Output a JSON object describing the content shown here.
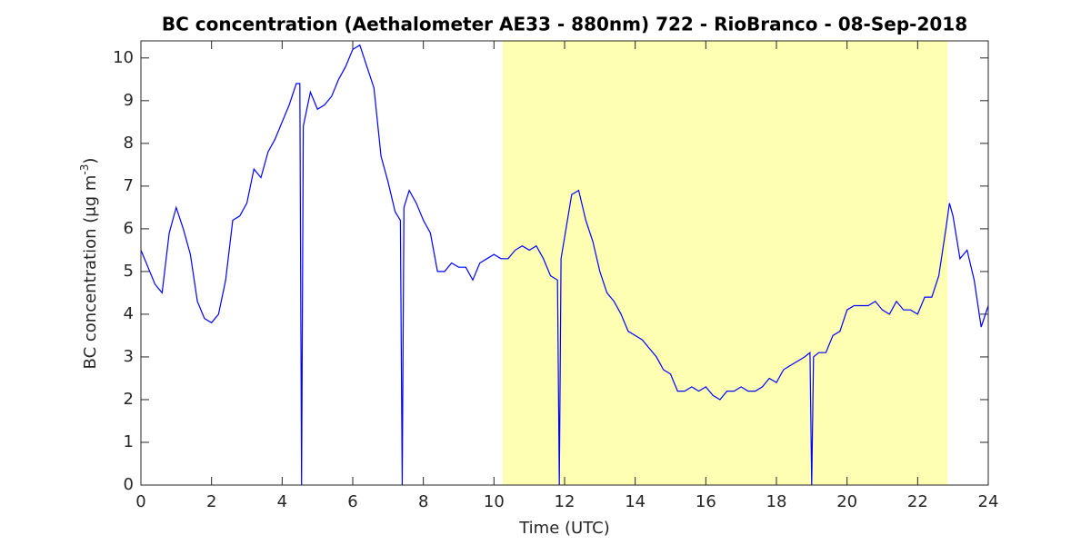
{
  "chart_data": {
    "type": "line",
    "title": "BC concentration (Aethalometer AE33 - 880nm) 722 - RioBranco - 08-Sep-2018",
    "xlabel": "Time (UTC)",
    "ylabel": {
      "text": "BC concentration (μg m",
      "superscript": "-3",
      "suffix": ")"
    },
    "xlim": [
      0,
      24
    ],
    "xticks": [
      0,
      2,
      4,
      6,
      8,
      10,
      12,
      14,
      16,
      18,
      20,
      22,
      24
    ],
    "ylim": [
      0,
      10.4
    ],
    "yticks": [
      0,
      1,
      2,
      3,
      4,
      5,
      6,
      7,
      8,
      9,
      10
    ],
    "shaded_region": {
      "x": [
        10.25,
        22.85
      ],
      "color": "#ffffb3"
    },
    "x": [
      0.0,
      0.2,
      0.4,
      0.6,
      0.8,
      1.0,
      1.2,
      1.4,
      1.6,
      1.8,
      2.0,
      2.2,
      2.4,
      2.6,
      2.8,
      3.0,
      3.2,
      3.4,
      3.6,
      3.8,
      4.0,
      4.2,
      4.4,
      4.5,
      4.55,
      4.6,
      4.8,
      5.0,
      5.2,
      5.4,
      5.6,
      5.8,
      6.0,
      6.2,
      6.4,
      6.6,
      6.8,
      7.0,
      7.2,
      7.35,
      7.4,
      7.45,
      7.6,
      7.8,
      8.0,
      8.2,
      8.4,
      8.6,
      8.8,
      9.0,
      9.2,
      9.4,
      9.6,
      9.8,
      10.0,
      10.2,
      10.4,
      10.6,
      10.8,
      11.0,
      11.2,
      11.4,
      11.6,
      11.8,
      11.85,
      11.9,
      12.0,
      12.2,
      12.4,
      12.6,
      12.8,
      13.0,
      13.2,
      13.4,
      13.6,
      13.8,
      14.0,
      14.2,
      14.4,
      14.6,
      14.8,
      15.0,
      15.2,
      15.4,
      15.6,
      15.8,
      16.0,
      16.2,
      16.4,
      16.6,
      16.8,
      17.0,
      17.2,
      17.4,
      17.6,
      17.8,
      18.0,
      18.2,
      18.4,
      18.6,
      18.8,
      18.95,
      19.0,
      19.05,
      19.2,
      19.4,
      19.6,
      19.8,
      20.0,
      20.2,
      20.4,
      20.6,
      20.8,
      21.0,
      21.2,
      21.4,
      21.6,
      21.8,
      22.0,
      22.2,
      22.4,
      22.6,
      22.8,
      22.9,
      23.0,
      23.2,
      23.4,
      23.6,
      23.8,
      24.0
    ],
    "series": [
      {
        "color": "#0000ff",
        "values": [
          5.5,
          5.1,
          4.7,
          4.5,
          5.9,
          6.5,
          6.0,
          5.4,
          4.3,
          3.9,
          3.8,
          4.0,
          4.8,
          6.2,
          6.3,
          6.6,
          7.4,
          7.2,
          7.8,
          8.1,
          8.5,
          8.9,
          9.4,
          9.4,
          0,
          8.4,
          9.2,
          8.8,
          8.9,
          9.1,
          9.5,
          9.8,
          10.2,
          10.3,
          9.8,
          9.3,
          7.7,
          7.1,
          6.4,
          6.2,
          0,
          6.5,
          6.9,
          6.6,
          6.2,
          5.9,
          5.0,
          5.0,
          5.2,
          5.1,
          5.1,
          4.8,
          5.2,
          5.3,
          5.4,
          5.3,
          5.3,
          5.5,
          5.6,
          5.5,
          5.6,
          5.3,
          4.9,
          4.8,
          0,
          5.3,
          5.8,
          6.8,
          6.9,
          6.2,
          5.7,
          5.0,
          4.5,
          4.3,
          4.0,
          3.6,
          3.5,
          3.4,
          3.2,
          3.0,
          2.7,
          2.6,
          2.2,
          2.2,
          2.3,
          2.2,
          2.3,
          2.1,
          2.0,
          2.2,
          2.2,
          2.3,
          2.2,
          2.2,
          2.3,
          2.5,
          2.4,
          2.7,
          2.8,
          2.9,
          3.0,
          3.1,
          0,
          3.0,
          3.1,
          3.1,
          3.5,
          3.6,
          4.1,
          4.2,
          4.2,
          4.2,
          4.3,
          4.1,
          4.0,
          4.3,
          4.1,
          4.1,
          4.0,
          4.4,
          4.4,
          4.9,
          6.0,
          6.6,
          6.3,
          5.3,
          5.5,
          4.8,
          3.7,
          4.2
        ]
      }
    ]
  }
}
